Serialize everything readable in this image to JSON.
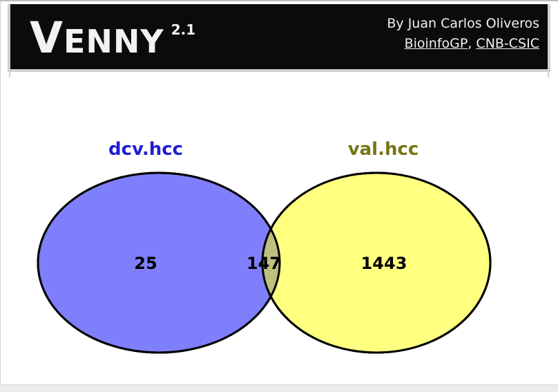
{
  "header": {
    "logo_first": "V",
    "logo_rest": "ENNY",
    "version": "2.1",
    "author_line": "By Juan Carlos Oliveros",
    "link1": "BioinfoGP",
    "separator": ",",
    "link2": "CNB-CSIC"
  },
  "venn": {
    "set_a": {
      "label": "dcv.hcc",
      "label_color": "#1d1dd6",
      "fill": "#7f7ffb",
      "only_count": "25"
    },
    "set_b": {
      "label": "val.hcc",
      "label_color": "#767612",
      "fill": "#ffff80",
      "only_count": "1443"
    },
    "intersection": {
      "count": "147",
      "fill": "#bfbf80"
    }
  }
}
